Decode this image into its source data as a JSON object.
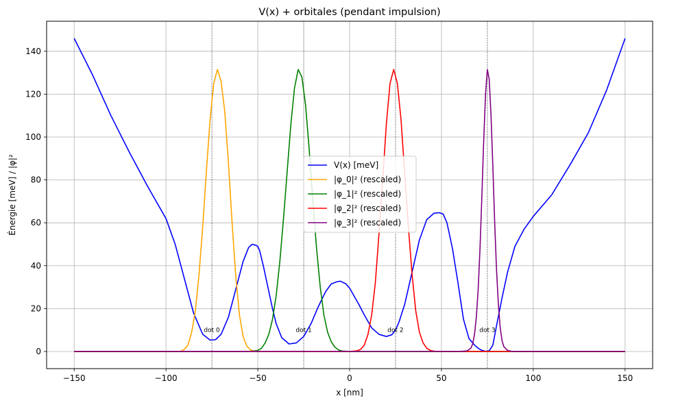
{
  "chart_data": {
    "type": "line",
    "title": "V(x) + orbitales (pendant impulsion)",
    "xlabel": "x [nm]",
    "ylabel": "Énergie [meV] / |φ|²",
    "xlim": [
      -165,
      165
    ],
    "ylim": [
      -8,
      154
    ],
    "grid": true,
    "legend_position": "center",
    "x_ticks": [
      -150,
      -100,
      -50,
      0,
      50,
      100,
      150
    ],
    "x_tick_labels": [
      "−150",
      "−100",
      "−50",
      "0",
      "50",
      "100",
      "150"
    ],
    "y_ticks": [
      0,
      20,
      40,
      60,
      80,
      100,
      120,
      140
    ],
    "y_tick_labels": [
      "0",
      "20",
      "40",
      "60",
      "80",
      "100",
      "120",
      "140"
    ],
    "dots": [
      {
        "label": "dot 0",
        "x": -75
      },
      {
        "label": "dot 1",
        "x": -25
      },
      {
        "label": "dot 2",
        "x": 25
      },
      {
        "label": "dot 3",
        "x": 75
      }
    ],
    "series": [
      {
        "name": "V(x) [meV]",
        "color": "#0000ff",
        "x": [
          -150,
          -140,
          -130,
          -120,
          -110,
          -100,
          -95,
          -90,
          -85,
          -80,
          -76,
          -73,
          -70,
          -66,
          -62,
          -58,
          -55,
          -53,
          -51,
          -50,
          -49,
          -47,
          -45,
          -42,
          -40,
          -37,
          -33,
          -29,
          -25,
          -21,
          -17,
          -13,
          -10,
          -7,
          -5,
          -2,
          0,
          2,
          5,
          8,
          12,
          16,
          20,
          23,
          25,
          27,
          30,
          34,
          38,
          42,
          46,
          49,
          51,
          53,
          56,
          59,
          62,
          65,
          68,
          70,
          72,
          74,
          76,
          78,
          80,
          83,
          86,
          90,
          95,
          100,
          110,
          120,
          130,
          140,
          150
        ],
        "y": [
          146,
          129,
          110,
          93,
          77,
          62,
          50,
          34,
          18,
          8,
          5.3,
          5.5,
          8,
          16,
          29,
          42,
          48.5,
          50,
          49.5,
          49,
          47,
          40,
          32,
          20,
          13,
          6.5,
          3.5,
          4,
          7,
          13,
          21,
          28,
          31.5,
          32.5,
          32.8,
          31.5,
          29.5,
          26.5,
          22,
          17,
          11,
          8,
          7,
          7.8,
          10,
          14,
          22,
          37,
          52,
          61.5,
          64.5,
          64.7,
          64,
          60,
          48,
          32,
          15,
          6,
          3,
          1.5,
          0.5,
          0.1,
          0.3,
          3,
          12,
          25,
          37,
          49,
          57,
          63,
          73,
          87,
          102,
          122,
          146
        ]
      },
      {
        "name": "|φ_0|² (rescaled)",
        "color": "#ffa500",
        "x": [
          -150,
          -100,
          -92,
          -90,
          -88,
          -86,
          -84,
          -82,
          -80,
          -78,
          -76,
          -74,
          -72,
          -70,
          -68,
          -66,
          -64,
          -62,
          -60,
          -58,
          -56,
          -54,
          -52,
          -50,
          -40,
          150
        ],
        "y": [
          0,
          0,
          0.1,
          1,
          3,
          9,
          19,
          36,
          58,
          84,
          108,
          125,
          131.5,
          126,
          112,
          88,
          60,
          35,
          17,
          7,
          2.5,
          0.8,
          0.2,
          0,
          0,
          0
        ]
      },
      {
        "name": "|φ_1|² (rescaled)",
        "color": "#008000",
        "x": [
          -150,
          -56,
          -52,
          -50,
          -48,
          -46,
          -44,
          -42,
          -40,
          -38,
          -36,
          -34,
          -32,
          -30,
          -28,
          -26,
          -24,
          -22,
          -20,
          -18,
          -16,
          -14,
          -12,
          -10,
          -8,
          -6,
          -4,
          0,
          150
        ],
        "y": [
          0,
          0,
          0.2,
          0.5,
          1.5,
          4,
          8,
          15,
          26,
          42,
          62,
          84,
          106,
          123,
          131.5,
          128,
          115,
          94,
          70,
          48,
          30,
          17,
          9,
          4.5,
          2,
          0.7,
          0.2,
          0,
          0
        ]
      },
      {
        "name": "|φ_2|² (rescaled)",
        "color": "#ff0000",
        "x": [
          -150,
          0,
          4,
          6,
          8,
          10,
          12,
          14,
          16,
          18,
          20,
          22,
          24,
          26,
          28,
          30,
          32,
          34,
          36,
          38,
          40,
          42,
          44,
          46,
          50,
          150
        ],
        "y": [
          0,
          0,
          0.3,
          1,
          3,
          8,
          17,
          32,
          55,
          80,
          106,
          125,
          131.5,
          125,
          108,
          83,
          58,
          36,
          19,
          9,
          4,
          1.5,
          0.5,
          0.1,
          0,
          0
        ]
      },
      {
        "name": "|φ_3|² (rescaled)",
        "color": "#800080",
        "x": [
          -150,
          60,
          64,
          66,
          67,
          68,
          69,
          70,
          71,
          72,
          73,
          74,
          75,
          76,
          77,
          78,
          79,
          80,
          81,
          82,
          83,
          84,
          86,
          88,
          90,
          150
        ],
        "y": [
          0,
          0,
          0.3,
          1.5,
          3.5,
          8,
          16,
          29,
          48,
          72,
          98,
          120,
          131.5,
          127,
          110,
          86,
          60,
          38,
          22,
          11,
          5,
          2.2,
          0.5,
          0.1,
          0,
          0
        ]
      }
    ]
  }
}
